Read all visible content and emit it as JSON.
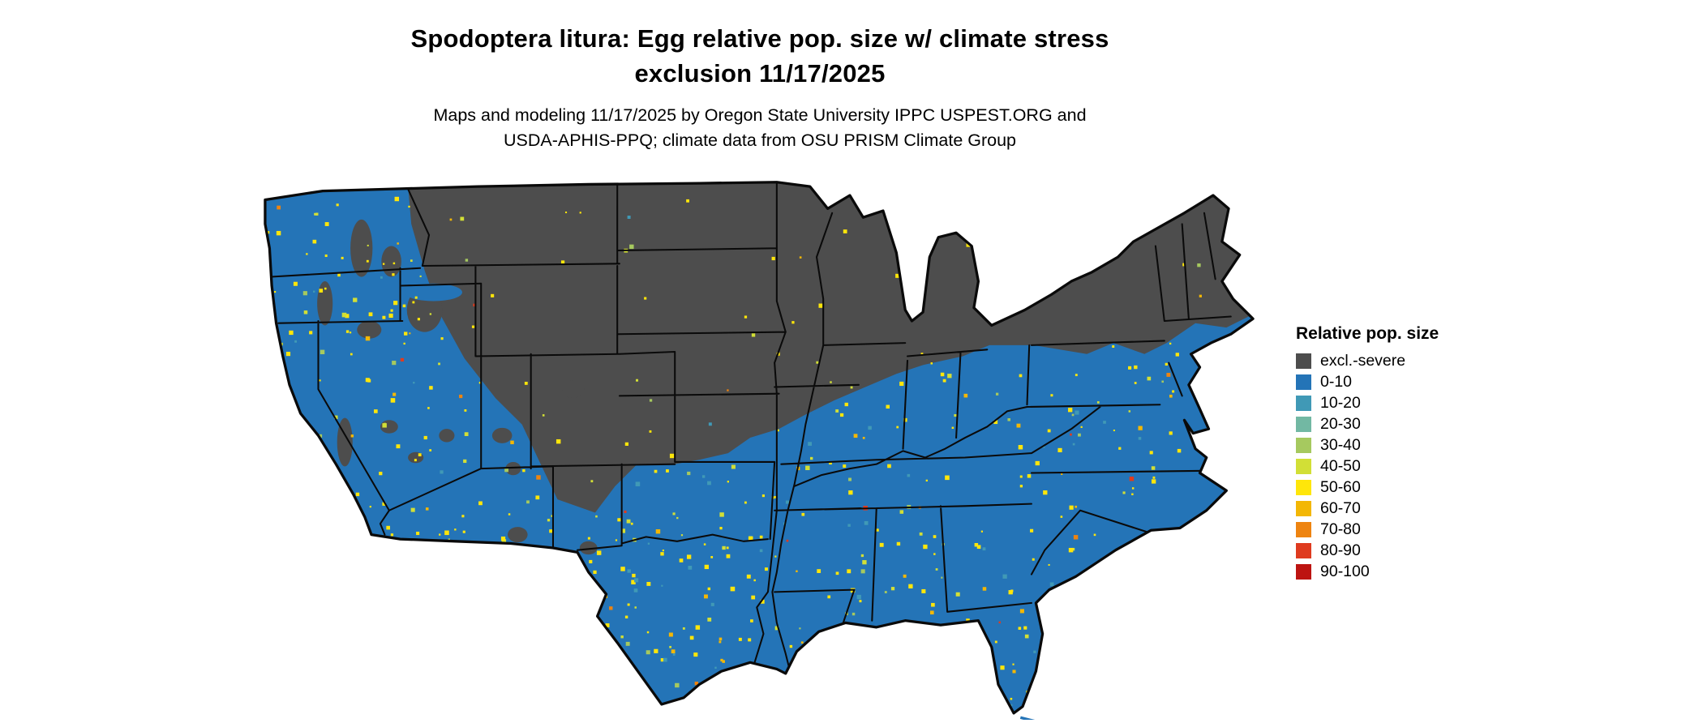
{
  "title": {
    "line1": "Spodoptera litura: Egg relative pop. size w/ climate stress",
    "line2": "exclusion 11/17/2025"
  },
  "subtitle": {
    "line1": "Maps and modeling 11/17/2025 by Oregon State University IPPC USPEST.ORG and",
    "line2": "USDA-APHIS-PPQ; climate data from OSU PRISM Climate Group"
  },
  "legend": {
    "title": "Relative pop. size",
    "items": [
      {
        "label": "excl.-severe",
        "color": "#4d4d4d"
      },
      {
        "label": "0-10",
        "color": "#2474b7"
      },
      {
        "label": "10-20",
        "color": "#4099b6"
      },
      {
        "label": "20-30",
        "color": "#72b8a3"
      },
      {
        "label": "30-40",
        "color": "#a6c95f"
      },
      {
        "label": "40-50",
        "color": "#d2df36"
      },
      {
        "label": "50-60",
        "color": "#ffe60a"
      },
      {
        "label": "60-70",
        "color": "#f3b705"
      },
      {
        "label": "70-80",
        "color": "#ee8410"
      },
      {
        "label": "80-90",
        "color": "#df3b1f"
      },
      {
        "label": "90-100",
        "color": "#bd1411"
      }
    ]
  },
  "map": {
    "region_label": "Continental United States",
    "dominant_category": "0-10",
    "excluded_category": "excl.-severe",
    "border_color": "#0a0a0a",
    "background_color": "#ffffff"
  }
}
